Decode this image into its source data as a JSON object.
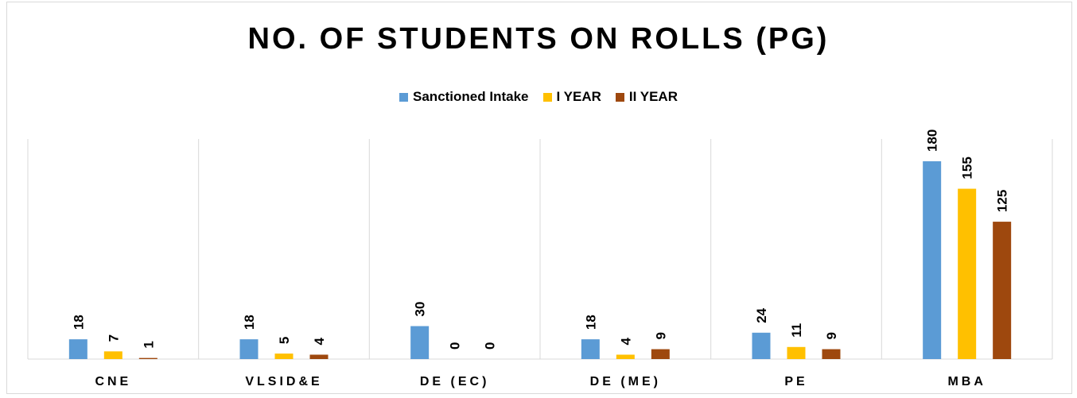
{
  "chart_data": {
    "type": "bar",
    "title": "NO. OF STUDENTS ON ROLLS (PG)",
    "xlabel": "",
    "ylabel": "",
    "categories": [
      "CNE",
      "VLSID&E",
      "DE (EC)",
      "DE (ME)",
      "PE",
      "MBA"
    ],
    "series": [
      {
        "name": "Sanctioned Intake",
        "color": "#5b9bd5",
        "values": [
          18,
          18,
          30,
          18,
          24,
          180
        ]
      },
      {
        "name": "I YEAR",
        "color": "#ffc000",
        "values": [
          7,
          5,
          0,
          4,
          11,
          155
        ]
      },
      {
        "name": "II YEAR",
        "color": "#9e480e",
        "values": [
          1,
          4,
          0,
          9,
          9,
          125
        ]
      }
    ],
    "ylim": [
      0,
      180
    ],
    "grid": false,
    "legend_position": "top",
    "data_labels": true
  }
}
